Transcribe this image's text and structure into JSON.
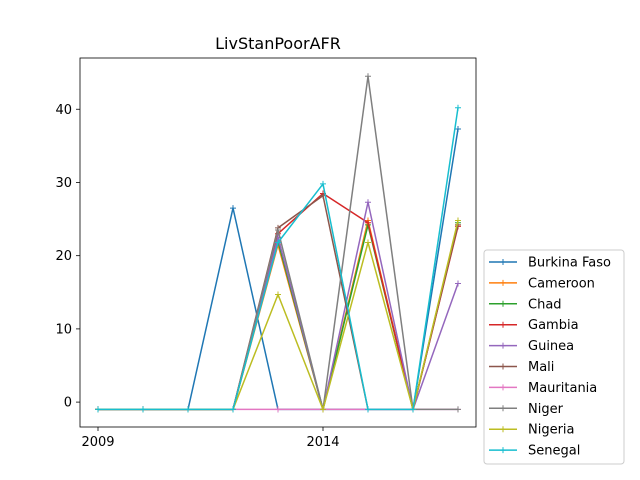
{
  "chart_data": {
    "type": "line",
    "title": "LivStanPoorAFR",
    "xlabel": "",
    "ylabel": "",
    "x": [
      2009,
      2010,
      2011,
      2012,
      2013,
      2014,
      2015,
      2016,
      2017
    ],
    "xticks": [
      2009,
      2014
    ],
    "yticks": [
      0,
      10,
      20,
      30,
      40
    ],
    "xlim": [
      2008.6,
      2017.4
    ],
    "ylim": [
      -3.4,
      47.0
    ],
    "grid": false,
    "legend_position": "lower-right, outside plot",
    "series": [
      {
        "name": "Burkina Faso",
        "color": "#1f77b4",
        "values": [
          -1,
          -1,
          -1,
          26.5,
          -1,
          -1,
          -1,
          -1,
          37.3
        ]
      },
      {
        "name": "Cameroon",
        "color": "#ff7f0e",
        "values": [
          -1,
          -1,
          -1,
          -1,
          21.5,
          -1,
          24.8,
          -1,
          24.2
        ]
      },
      {
        "name": "Chad",
        "color": "#2ca02c",
        "values": [
          -1,
          -1,
          -1,
          -1,
          22.0,
          -1,
          24.2,
          -1,
          24.5
        ]
      },
      {
        "name": "Gambia",
        "color": "#d62728",
        "values": [
          -1,
          -1,
          -1,
          -1,
          23.0,
          28.5,
          24.5,
          -1,
          24.0
        ]
      },
      {
        "name": "Guinea",
        "color": "#9467bd",
        "values": [
          -1,
          -1,
          -1,
          -1,
          22.5,
          -1,
          27.3,
          -1,
          16.2
        ]
      },
      {
        "name": "Mali",
        "color": "#8c564b",
        "values": [
          -1,
          -1,
          -1,
          -1,
          23.8,
          28.2,
          -1,
          -1,
          24.2
        ]
      },
      {
        "name": "Mauritania",
        "color": "#e377c2",
        "values": [
          -1,
          -1,
          -1,
          -1,
          -1,
          -1,
          -1,
          -1,
          -1
        ]
      },
      {
        "name": "Niger",
        "color": "#7f7f7f",
        "values": [
          -1,
          -1,
          -1,
          -1,
          23.5,
          -1,
          44.5,
          -1,
          -1
        ]
      },
      {
        "name": "Nigeria",
        "color": "#bcbd22",
        "values": [
          -1,
          -1,
          -1,
          -1,
          14.7,
          -1,
          21.8,
          -1,
          24.8
        ]
      },
      {
        "name": "Senegal",
        "color": "#17becf",
        "values": [
          -1,
          -1,
          -1,
          -1,
          21.8,
          29.8,
          -1,
          -1,
          40.2
        ]
      }
    ]
  }
}
